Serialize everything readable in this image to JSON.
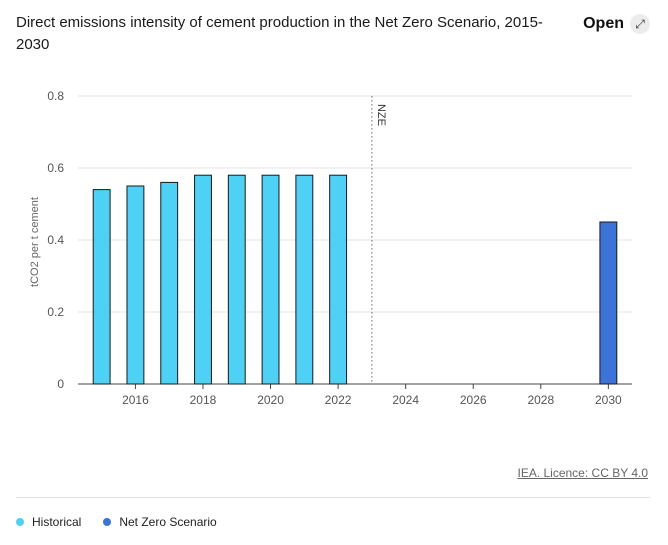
{
  "header": {
    "title": "Direct emissions intensity of cement production in the Net Zero Scenario, 2015-2030",
    "open_label": "Open",
    "open_icon": "expand-arrow-icon"
  },
  "footer": {
    "license": "IEA. Licence: CC BY 4.0"
  },
  "colors": {
    "historical": "#4fd0f5",
    "net_zero": "#3b73d6"
  },
  "chart_data": {
    "type": "bar",
    "title": "Direct emissions intensity of cement production in the Net Zero Scenario, 2015-2030",
    "ylabel": "tCO2 per t cement",
    "xlabel": "",
    "ylim": [
      0,
      0.8
    ],
    "xlim": [
      2014.3,
      2030.7
    ],
    "yticks": [
      "0",
      "0.2",
      "0.4",
      "0.6",
      "0.8"
    ],
    "xticks": [
      "2016",
      "2018",
      "2020",
      "2022",
      "2024",
      "2026",
      "2028",
      "2030"
    ],
    "grid": true,
    "legend_position": "bottom-left",
    "series": [
      {
        "name": "Historical",
        "x": [
          2015,
          2016,
          2017,
          2018,
          2019,
          2020,
          2021,
          2022
        ],
        "values": [
          0.54,
          0.55,
          0.56,
          0.58,
          0.58,
          0.58,
          0.58,
          0.58
        ]
      },
      {
        "name": "Net Zero Scenario",
        "x": [
          2030
        ],
        "values": [
          0.45
        ]
      }
    ],
    "annotations": [
      {
        "type": "vertical-dotted-line",
        "x": 2023,
        "label": "NZE"
      }
    ]
  }
}
